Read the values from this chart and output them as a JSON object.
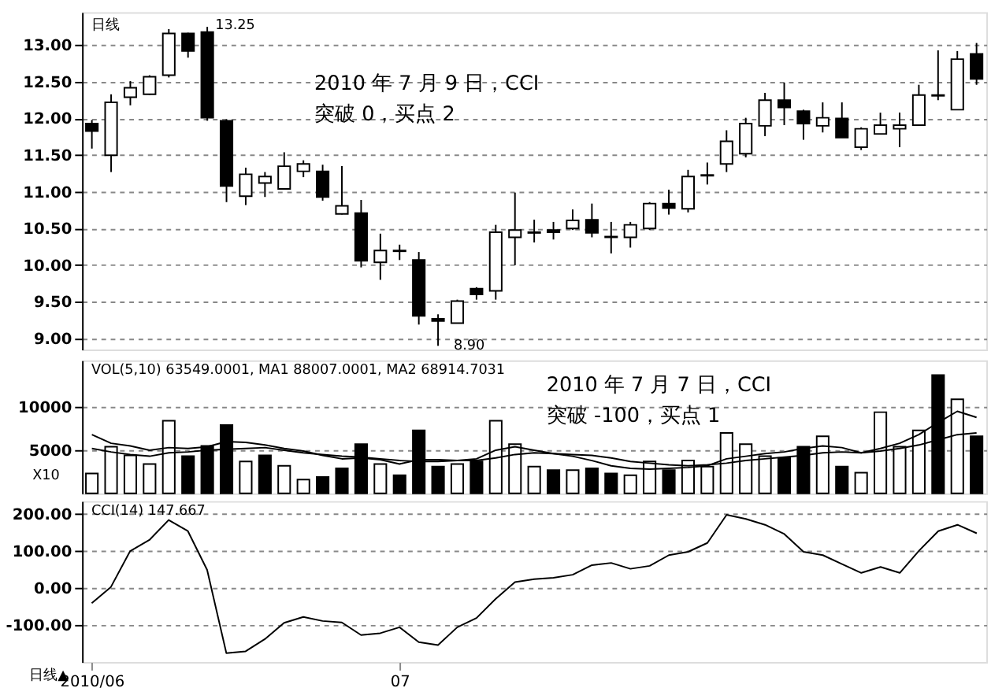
{
  "chart_data": [
    {
      "type": "candlestick",
      "categories": [
        "2010/06",
        null,
        null,
        null,
        null,
        null,
        null,
        null,
        null,
        null,
        null,
        null,
        null,
        null,
        null,
        null,
        "07",
        null,
        null,
        null,
        null,
        null,
        null,
        null,
        null,
        null,
        null,
        null,
        null,
        null,
        null,
        null,
        null,
        null,
        null,
        null,
        null,
        null,
        null,
        null,
        null,
        null,
        null,
        null,
        null,
        null,
        null
      ],
      "ohlc": [
        [
          11.93,
          11.98,
          11.59,
          11.83
        ],
        [
          11.5,
          12.33,
          11.27,
          12.22
        ],
        [
          12.29,
          12.51,
          12.18,
          12.42
        ],
        [
          12.33,
          12.59,
          12.32,
          12.57
        ],
        [
          12.59,
          13.22,
          12.56,
          13.16
        ],
        [
          13.16,
          13.17,
          12.83,
          12.92
        ],
        [
          13.18,
          13.25,
          11.97,
          12.01
        ],
        [
          11.97,
          11.99,
          10.86,
          11.08
        ],
        [
          10.94,
          11.33,
          10.82,
          11.24
        ],
        [
          11.12,
          11.27,
          10.93,
          11.21
        ],
        [
          11.04,
          11.54,
          11.03,
          11.35
        ],
        [
          11.28,
          11.43,
          11.2,
          11.38
        ],
        [
          11.28,
          11.37,
          10.88,
          10.93
        ],
        [
          10.7,
          11.35,
          10.69,
          10.81
        ],
        [
          10.71,
          10.89,
          9.97,
          10.06
        ],
        [
          10.04,
          10.43,
          9.8,
          10.2
        ],
        [
          10.19,
          10.28,
          10.07,
          10.2
        ],
        [
          10.07,
          10.18,
          9.19,
          9.31
        ],
        [
          9.27,
          9.33,
          8.9,
          9.24
        ],
        [
          9.21,
          9.53,
          9.21,
          9.51
        ],
        [
          9.68,
          9.7,
          9.53,
          9.6
        ],
        [
          9.65,
          10.55,
          9.53,
          10.45
        ],
        [
          10.38,
          10.99,
          10.0,
          10.48
        ],
        [
          10.44,
          10.62,
          10.31,
          10.45
        ],
        [
          10.48,
          10.59,
          10.35,
          10.45
        ],
        [
          10.5,
          10.76,
          10.48,
          10.61
        ],
        [
          10.62,
          10.84,
          10.38,
          10.44
        ],
        [
          10.38,
          10.59,
          10.16,
          10.39
        ],
        [
          10.38,
          10.59,
          10.24,
          10.55
        ],
        [
          10.5,
          10.86,
          10.48,
          10.84
        ],
        [
          10.84,
          11.03,
          10.69,
          10.78
        ],
        [
          10.77,
          11.3,
          10.72,
          11.21
        ],
        [
          11.22,
          11.4,
          11.1,
          11.23
        ],
        [
          11.38,
          11.84,
          11.27,
          11.69
        ],
        [
          11.52,
          12.01,
          11.47,
          11.93
        ],
        [
          11.9,
          12.35,
          11.76,
          12.25
        ],
        [
          12.25,
          12.49,
          11.91,
          12.15
        ],
        [
          12.1,
          12.12,
          11.71,
          11.93
        ],
        [
          11.9,
          12.22,
          11.81,
          12.01
        ],
        [
          12.0,
          12.22,
          11.74,
          11.74
        ],
        [
          11.61,
          11.88,
          11.57,
          11.86
        ],
        [
          11.79,
          12.08,
          11.79,
          11.91
        ],
        [
          11.86,
          12.08,
          11.61,
          11.91
        ],
        [
          11.91,
          12.46,
          11.91,
          12.32
        ],
        [
          12.31,
          12.93,
          12.25,
          12.32
        ],
        [
          12.12,
          12.92,
          12.12,
          12.81
        ],
        [
          12.88,
          13.03,
          12.46,
          12.54
        ]
      ],
      "colors": [
        "#000000",
        "#ffffff",
        "#ffffff",
        "#ffffff",
        "#ffffff",
        "#000000",
        "#000000",
        "#000000",
        "#ffffff",
        "#ffffff",
        "#ffffff",
        "#ffffff",
        "#000000",
        "#ffffff",
        "#000000",
        "#ffffff",
        "#ffffff",
        "#000000",
        "#000000",
        "#ffffff",
        "#000000",
        "#ffffff",
        "#ffffff",
        "#ffffff",
        "#000000",
        "#ffffff",
        "#000000",
        "#ffffff",
        "#ffffff",
        "#ffffff",
        "#000000",
        "#ffffff",
        "#ffffff",
        "#ffffff",
        "#ffffff",
        "#ffffff",
        "#000000",
        "#000000",
        "#ffffff",
        "#000000",
        "#ffffff",
        "#ffffff",
        "#ffffff",
        "#ffffff",
        "#ffffff",
        "#ffffff",
        "#000000"
      ],
      "ylim": [
        8.85,
        13.45
      ],
      "yticks": [
        {
          "value": 9,
          "label": "9.00"
        },
        {
          "value": 9.5,
          "label": "9.50"
        },
        {
          "value": 10,
          "label": "10.00"
        },
        {
          "value": 10.5,
          "label": "10.50"
        },
        {
          "value": 11,
          "label": "11.00"
        },
        {
          "value": 11.5,
          "label": "11.50"
        },
        {
          "value": 12,
          "label": "12.00"
        },
        {
          "value": 12.5,
          "label": "12.50"
        },
        {
          "value": 13,
          "label": "13.00"
        }
      ],
      "grid": "y",
      "tick_labels": "y",
      "annotations": [
        "日线",
        "2010 年 7 月 9 日，CCI\n突破 0，买点 2",
        "13.25",
        "8.90"
      ]
    },
    {
      "type": "bar",
      "categories": [
        "2010/06",
        null,
        null,
        null,
        null,
        null,
        null,
        null,
        null,
        null,
        null,
        null,
        null,
        null,
        null,
        null,
        "07",
        null,
        null,
        null,
        null,
        null,
        null,
        null,
        null,
        null,
        null,
        null,
        null,
        null,
        null,
        null,
        null,
        null,
        null,
        null,
        null,
        null,
        null,
        null,
        null,
        null,
        null,
        null,
        null,
        null,
        null
      ],
      "series": [
        {
          "type": "bar",
          "values": [
            2300,
            5400,
            4400,
            3400,
            8400,
            4300,
            5500,
            7900,
            3700,
            4400,
            3200,
            1600,
            1900,
            2900,
            5700,
            3400,
            2100,
            7300,
            3100,
            3400,
            3700,
            8400,
            5700,
            3100,
            2700,
            2700,
            2900,
            2300,
            2100,
            3700,
            2700,
            3800,
            3100,
            7000,
            5700,
            4300,
            4100,
            5400,
            6600,
            3100,
            2400,
            9400,
            5400,
            7300,
            13700,
            10900,
            6600
          ],
          "colors": [
            "#ffffff",
            "#ffffff",
            "#ffffff",
            "#ffffff",
            "#ffffff",
            "#000000",
            "#000000",
            "#000000",
            "#ffffff",
            "#000000",
            "#ffffff",
            "#ffffff",
            "#000000",
            "#000000",
            "#000000",
            "#ffffff",
            "#000000",
            "#000000",
            "#000000",
            "#ffffff",
            "#000000",
            "#ffffff",
            "#ffffff",
            "#ffffff",
            "#000000",
            "#ffffff",
            "#000000",
            "#000000",
            "#ffffff",
            "#ffffff",
            "#000000",
            "#ffffff",
            "#ffffff",
            "#ffffff",
            "#ffffff",
            "#ffffff",
            "#000000",
            "#000000",
            "#ffffff",
            "#000000",
            "#ffffff",
            "#ffffff",
            "#ffffff",
            "#ffffff",
            "#000000",
            "#ffffff",
            "#000000"
          ]
        },
        {
          "type": "line",
          "color": "#000000",
          "values": [
            6800,
            5800,
            5500,
            5000,
            5300,
            5200,
            5400,
            6000,
            5900,
            5600,
            5200,
            4900,
            4400,
            4000,
            4100,
            3900,
            3400,
            3900,
            3900,
            3800,
            4000,
            5000,
            5400,
            5000,
            4600,
            4300,
            3800,
            3200,
            2900,
            2800,
            2900,
            3000,
            3200,
            4000,
            4300,
            4600,
            4800,
            5200,
            5500,
            5300,
            4700,
            5200,
            5800,
            6800,
            8200,
            9500,
            8800
          ]
        },
        {
          "type": "line",
          "color": "#000000",
          "values": [
            5200,
            4800,
            4500,
            4300,
            4700,
            4800,
            5000,
            5100,
            5200,
            5300,
            5000,
            4700,
            4500,
            4300,
            4200,
            4000,
            3800,
            3700,
            3700,
            3800,
            3800,
            4100,
            4500,
            4700,
            4600,
            4500,
            4400,
            4100,
            3700,
            3500,
            3300,
            3200,
            3300,
            3500,
            3800,
            4000,
            4200,
            4400,
            4700,
            4800,
            4700,
            4900,
            5200,
            5600,
            6200,
            6800,
            7000
          ]
        }
      ],
      "ylim": [
        0,
        15400
      ],
      "yticks": [
        5000,
        10000
      ],
      "grid": "y",
      "tick_labels": "y",
      "annotations": [
        "VOL(5,10) 63549.0001, MA1 88007.0001, MA2 68914.7031",
        "X10",
        "2010 年 7 月 7 日，CCI\n突破 -100，买点 1"
      ]
    },
    {
      "type": "line",
      "categories": [
        "2010/06",
        null,
        null,
        null,
        null,
        null,
        null,
        null,
        null,
        null,
        null,
        null,
        null,
        null,
        null,
        null,
        "07",
        null,
        null,
        null,
        null,
        null,
        null,
        null,
        null,
        null,
        null,
        null,
        null,
        null,
        null,
        null,
        null,
        null,
        null,
        null,
        null,
        null,
        null,
        null,
        null,
        null,
        null,
        null,
        null,
        null,
        null
      ],
      "series": [
        {
          "color": "#000000",
          "values": [
            -41,
            3,
            100,
            130,
            184,
            154,
            49,
            -176,
            -171,
            -138,
            -94,
            -78,
            -89,
            -93,
            -127,
            -122,
            -106,
            -146,
            -154,
            -106,
            -81,
            -29,
            16,
            24,
            28,
            36,
            62,
            68,
            52,
            60,
            89,
            98,
            122,
            198,
            187,
            171,
            146,
            98,
            89,
            65,
            41,
            57,
            41,
            101,
            154,
            171,
            148
          ]
        }
      ],
      "ylim": [
        -200,
        235
      ],
      "yticks": [
        {
          "value": -100,
          "label": "-100.00"
        },
        {
          "value": 0,
          "label": "0.00"
        },
        {
          "value": 100,
          "label": "100.00"
        },
        {
          "value": 200,
          "label": "200.00"
        }
      ],
      "grid": "y",
      "annotations": [
        "CCI(14) 147.667",
        "日线▲"
      ]
    }
  ]
}
